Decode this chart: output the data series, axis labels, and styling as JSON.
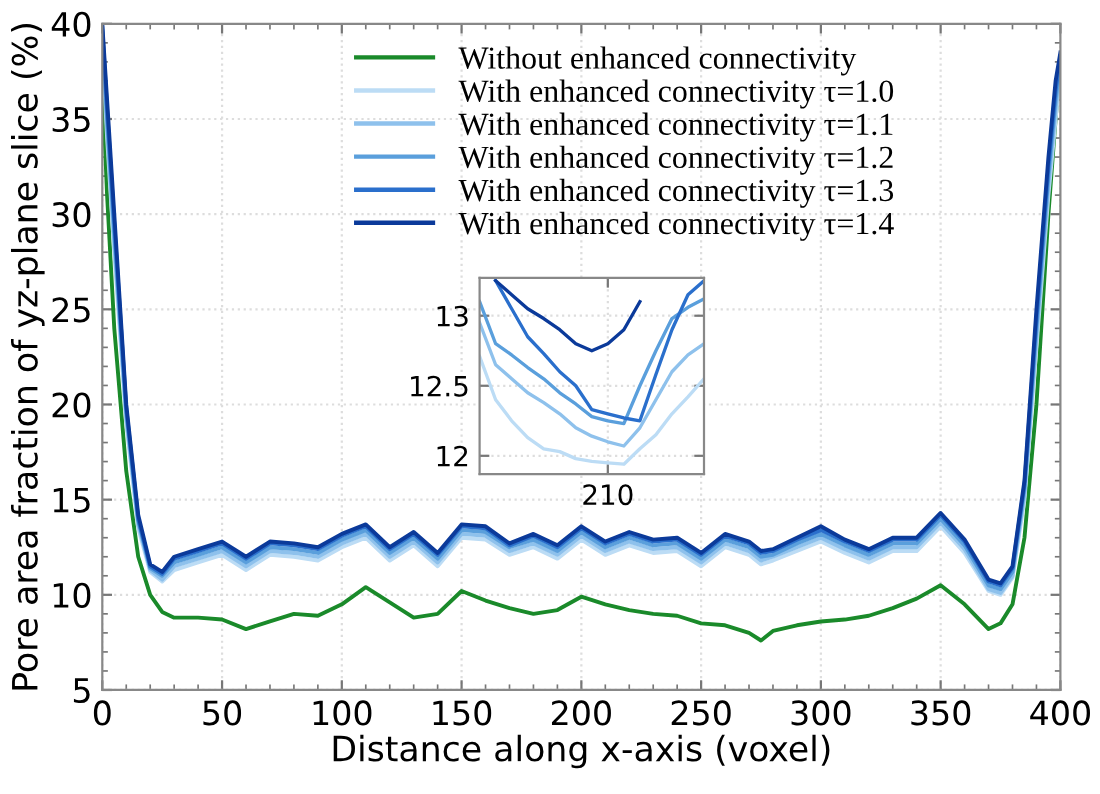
{
  "chart_data": [
    {
      "type": "line",
      "xlabel": "Distance along x-axis (voxel)",
      "ylabel": "Pore area fraction of yz-plane slice (%)",
      "x": [
        0,
        2,
        5,
        10,
        15,
        20,
        25,
        30,
        40,
        50,
        60,
        70,
        80,
        90,
        100,
        110,
        120,
        130,
        140,
        150,
        160,
        170,
        180,
        190,
        200,
        210,
        220,
        230,
        240,
        250,
        260,
        270,
        275,
        280,
        290,
        300,
        310,
        320,
        330,
        340,
        350,
        360,
        370,
        375,
        380,
        385,
        390,
        395,
        398,
        400
      ],
      "series": [
        {
          "name": "Without enhanced connectivity",
          "color": "#1a8a2a",
          "values": [
            37,
            31,
            24,
            16.5,
            12,
            10,
            9.1,
            8.8,
            8.8,
            8.7,
            8.2,
            8.6,
            9.0,
            8.9,
            9.5,
            10.4,
            9.6,
            8.8,
            9.0,
            10.2,
            9.7,
            9.3,
            9.0,
            9.2,
            9.9,
            9.5,
            9.2,
            9.0,
            8.9,
            8.5,
            8.4,
            8.0,
            7.6,
            8.1,
            8.4,
            8.6,
            8.7,
            8.9,
            9.3,
            9.8,
            10.5,
            9.5,
            8.2,
            8.5,
            9.5,
            13,
            20,
            30,
            35,
            38
          ]
        },
        {
          "name": "With enhanced connectivity τ=1.0",
          "color": "#bcdcf5",
          "values": [
            39,
            34,
            28,
            19,
            13.5,
            11.2,
            10.7,
            11.3,
            11.7,
            12.1,
            11.3,
            12.1,
            12.0,
            11.8,
            12.5,
            13.0,
            11.8,
            12.6,
            11.5,
            13.0,
            12.9,
            12.1,
            12.5,
            11.9,
            12.9,
            12.1,
            12.6,
            12.2,
            12.3,
            11.5,
            12.5,
            12.1,
            11.6,
            11.8,
            12.3,
            12.8,
            12.2,
            11.7,
            12.3,
            12.3,
            13.6,
            12.2,
            10.2,
            10.0,
            10.9,
            15,
            23,
            31,
            35,
            37.5
          ]
        },
        {
          "name": "With enhanced connectivity τ=1.1",
          "color": "#8ec1ec",
          "values": [
            39.3,
            34.5,
            28.5,
            19.3,
            13.7,
            11.3,
            10.8,
            11.5,
            11.9,
            12.3,
            11.5,
            12.3,
            12.2,
            12.0,
            12.7,
            13.2,
            12.0,
            12.8,
            11.7,
            13.2,
            13.1,
            12.3,
            12.7,
            12.1,
            13.1,
            12.3,
            12.8,
            12.4,
            12.5,
            11.7,
            12.7,
            12.3,
            11.8,
            12.0,
            12.5,
            13.0,
            12.4,
            11.9,
            12.5,
            12.5,
            13.8,
            12.4,
            10.3,
            10.1,
            11.0,
            15.3,
            23.5,
            31.5,
            35.5,
            37.8
          ]
        },
        {
          "name": "With enhanced connectivity τ=1.2",
          "color": "#5a9fdc",
          "values": [
            39.6,
            35,
            29,
            19.6,
            13.9,
            11.4,
            11.0,
            11.7,
            12.1,
            12.5,
            11.7,
            12.5,
            12.4,
            12.2,
            12.9,
            13.4,
            12.2,
            13.0,
            11.9,
            13.4,
            13.3,
            12.5,
            12.9,
            12.3,
            13.3,
            12.5,
            13.0,
            12.6,
            12.7,
            11.9,
            12.9,
            12.5,
            12.0,
            12.1,
            12.7,
            13.2,
            12.6,
            12.1,
            12.7,
            12.7,
            14.0,
            12.6,
            10.5,
            10.3,
            11.2,
            15.6,
            24,
            32,
            36,
            38
          ]
        },
        {
          "name": "With enhanced connectivity τ=1.3",
          "color": "#2a6fcc",
          "values": [
            39.8,
            35.5,
            29.5,
            19.8,
            14,
            11.5,
            11.1,
            11.9,
            12.3,
            12.7,
            11.9,
            12.7,
            12.6,
            12.4,
            13.1,
            13.6,
            12.4,
            13.2,
            12.1,
            13.6,
            13.5,
            12.6,
            13.1,
            12.5,
            13.5,
            12.7,
            13.2,
            12.8,
            12.9,
            12.1,
            13.1,
            12.7,
            12.2,
            12.3,
            12.9,
            13.4,
            12.8,
            12.3,
            12.9,
            12.9,
            14.2,
            12.8,
            10.7,
            10.5,
            11.4,
            15.8,
            24.5,
            32.5,
            36.5,
            38.3
          ]
        },
        {
          "name": "With enhanced connectivity τ=1.4",
          "color": "#0b3a9a",
          "values": [
            40,
            36,
            30,
            20,
            14.2,
            11.6,
            11.2,
            12.0,
            12.4,
            12.8,
            12.0,
            12.8,
            12.7,
            12.5,
            13.2,
            13.7,
            12.5,
            13.3,
            12.2,
            13.7,
            13.6,
            12.7,
            13.2,
            12.6,
            13.6,
            12.8,
            13.3,
            12.9,
            13.0,
            12.2,
            13.2,
            12.8,
            12.3,
            12.4,
            13.0,
            13.6,
            12.9,
            12.4,
            13.0,
            13.0,
            14.3,
            12.9,
            10.8,
            10.6,
            11.5,
            16,
            25,
            33,
            37,
            38.5
          ]
        }
      ],
      "xlim": [
        0,
        400
      ],
      "ylim": [
        5,
        40
      ],
      "xticks": [
        0,
        50,
        100,
        150,
        200,
        250,
        300,
        350,
        400
      ],
      "yticks": [
        5,
        10,
        15,
        20,
        25,
        30,
        35,
        40
      ],
      "grid": true,
      "legend": "top right",
      "marker": "none",
      "line_style": "solid"
    },
    {
      "type": "line",
      "categories": [
        null,
        null,
        null,
        null,
        null,
        null,
        null,
        null,
        "210",
        null,
        null,
        null,
        null,
        null,
        null
      ],
      "series": [
        {
          "color": "#bcdcf5",
          "values": [
            12.71,
            12.4,
            12.25,
            12.13,
            12.05,
            12.03,
            11.98,
            11.96,
            11.95,
            11.94,
            12.05,
            12.15,
            12.3,
            12.42,
            12.55
          ]
        },
        {
          "color": "#8ec1ec",
          "values": [
            12.95,
            12.65,
            12.55,
            12.45,
            12.38,
            12.3,
            12.2,
            12.14,
            12.1,
            12.07,
            12.2,
            12.4,
            12.6,
            12.72,
            12.8
          ]
        },
        {
          "color": "#5a9fdc",
          "values": [
            13.1,
            12.8,
            12.72,
            12.63,
            12.55,
            12.45,
            12.37,
            12.28,
            12.25,
            12.23,
            12.5,
            12.75,
            12.98,
            13.06,
            13.12
          ]
        },
        {
          "color": "#2a6fcc",
          "values": [
            null,
            13.25,
            13.05,
            12.85,
            12.73,
            12.6,
            12.5,
            12.33,
            12.3,
            12.27,
            12.25,
            12.58,
            12.9,
            13.15,
            13.25
          ]
        },
        {
          "color": "#0b3a9a",
          "values": [
            null,
            13.25,
            13.15,
            13.05,
            12.98,
            12.9,
            12.8,
            12.75,
            12.8,
            12.9,
            13.1,
            null,
            null,
            null,
            null
          ]
        }
      ],
      "ylim": [
        11.87,
        13.27
      ],
      "yticks": [
        12,
        12.5,
        13
      ],
      "grid": true,
      "marker": "none",
      "line_style": "solid"
    }
  ]
}
